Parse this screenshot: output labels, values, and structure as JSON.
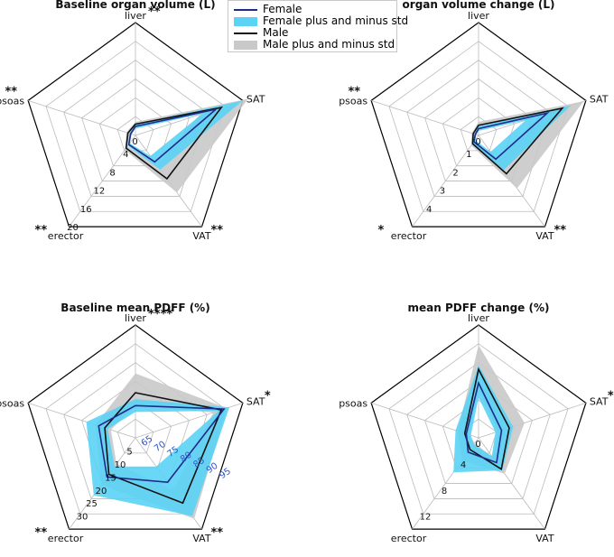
{
  "legend": {
    "items": [
      {
        "label": "Female",
        "kind": "line",
        "color": "#1f2a8a"
      },
      {
        "label": "Female plus and minus std",
        "kind": "band",
        "color": "#5bd3f5"
      },
      {
        "label": "Male",
        "kind": "line",
        "color": "#111111"
      },
      {
        "label": "Male plus and minus std",
        "kind": "band",
        "color": "#c9c9c9"
      }
    ]
  },
  "colors": {
    "female": "#1f2a8a",
    "female_band": "#5bd3f5",
    "male": "#111111",
    "male_band": "#c9c9c9",
    "grid": "#bbbbbb",
    "tick_blue": "#3057c8"
  },
  "chart_data": [
    {
      "type": "radar",
      "title": "Baseline organ volume (L)",
      "axes": [
        "liver",
        "SAT",
        "VAT",
        "erector",
        "psoas"
      ],
      "axis_marks": [
        "**",
        "",
        "**",
        "**",
        "**"
      ],
      "rlim": [
        0,
        20
      ],
      "radial_ticks": [
        "0",
        "4",
        "8",
        "12",
        "16",
        "20"
      ],
      "series": [
        {
          "name": "Female",
          "values": [
            1.6,
            15.0,
            5.8,
            2.0,
            0.9
          ],
          "lower": [
            1.2,
            12.5,
            4.5,
            1.7,
            0.7
          ],
          "upper": [
            2.0,
            20.0,
            7.5,
            2.3,
            1.1
          ]
        },
        {
          "name": "Male",
          "values": [
            2.0,
            16.0,
            9.5,
            2.8,
            1.4
          ],
          "lower": [
            1.6,
            12.0,
            6.5,
            2.4,
            1.1
          ],
          "upper": [
            2.4,
            21.0,
            12.5,
            3.2,
            1.7
          ]
        }
      ]
    },
    {
      "type": "radar",
      "title": "organ volume change (L)",
      "axes": [
        "liver",
        "SAT",
        "VAT",
        "erector",
        "psoas"
      ],
      "axis_marks": [
        "",
        "",
        "**",
        "*",
        "**"
      ],
      "rlim": [
        0,
        5
      ],
      "radial_ticks": [
        "0",
        "1",
        "2",
        "3",
        "4"
      ],
      "series": [
        {
          "name": "Female",
          "values": [
            0.3,
            3.2,
            1.3,
            0.35,
            0.15
          ],
          "lower": [
            0.2,
            2.2,
            0.9,
            0.25,
            0.1
          ],
          "upper": [
            0.4,
            4.3,
            1.9,
            0.45,
            0.2
          ]
        },
        {
          "name": "Male",
          "values": [
            0.45,
            3.9,
            2.1,
            0.45,
            0.25
          ],
          "lower": [
            0.3,
            2.8,
            1.4,
            0.35,
            0.18
          ],
          "upper": [
            0.6,
            4.9,
            2.9,
            0.55,
            0.32
          ]
        }
      ]
    },
    {
      "type": "radar",
      "title": "Baseline mean PDFF (%)",
      "axes": [
        "liver",
        "SAT",
        "VAT",
        "erector",
        "psoas"
      ],
      "axis_marks": [
        "****",
        "*",
        "**",
        "**",
        ""
      ],
      "rlim": [
        0,
        35
      ],
      "radial_ticks": [
        "5",
        "10",
        "15",
        "20",
        "25",
        "30"
      ],
      "sat_ticks": [
        "65",
        "70",
        "75",
        "80",
        "85",
        "90",
        "95"
      ],
      "series": [
        {
          "name": "Female",
          "values": [
            10.0,
            93.0,
            17.0,
            15.0,
            12.0
          ],
          "lower": [
            8.0,
            91.0,
            11.0,
            11.0,
            9.0
          ],
          "upper": [
            12.0,
            95.0,
            30.0,
            22.0,
            16.0
          ]
        },
        {
          "name": "Male",
          "values": [
            14.0,
            92.0,
            25.0,
            14.0,
            10.0
          ],
          "lower": [
            10.0,
            89.0,
            20.0,
            10.0,
            8.0
          ],
          "upper": [
            20.0,
            94.0,
            31.0,
            18.0,
            13.0
          ]
        }
      ]
    },
    {
      "type": "radar",
      "title": "mean PDFF change (%)",
      "axes": [
        "liver",
        "SAT",
        "VAT",
        "erector",
        "psoas"
      ],
      "axis_marks": [
        "",
        "*",
        "",
        "",
        ""
      ],
      "rlim": [
        0,
        14
      ],
      "radial_ticks": [
        "0",
        "4",
        "8",
        "12"
      ],
      "series": [
        {
          "name": "Female",
          "values": [
            6.8,
            3.0,
            3.8,
            2.2,
            1.6
          ],
          "lower": [
            5.0,
            2.2,
            2.8,
            1.0,
            1.0
          ],
          "upper": [
            9.0,
            4.5,
            5.0,
            5.3,
            3.0
          ]
        },
        {
          "name": "Male",
          "values": [
            8.5,
            4.0,
            4.8,
            1.8,
            1.8
          ],
          "lower": [
            6.0,
            2.5,
            3.0,
            0.8,
            1.2
          ],
          "upper": [
            11.5,
            6.0,
            5.5,
            3.5,
            2.7
          ]
        }
      ]
    }
  ]
}
